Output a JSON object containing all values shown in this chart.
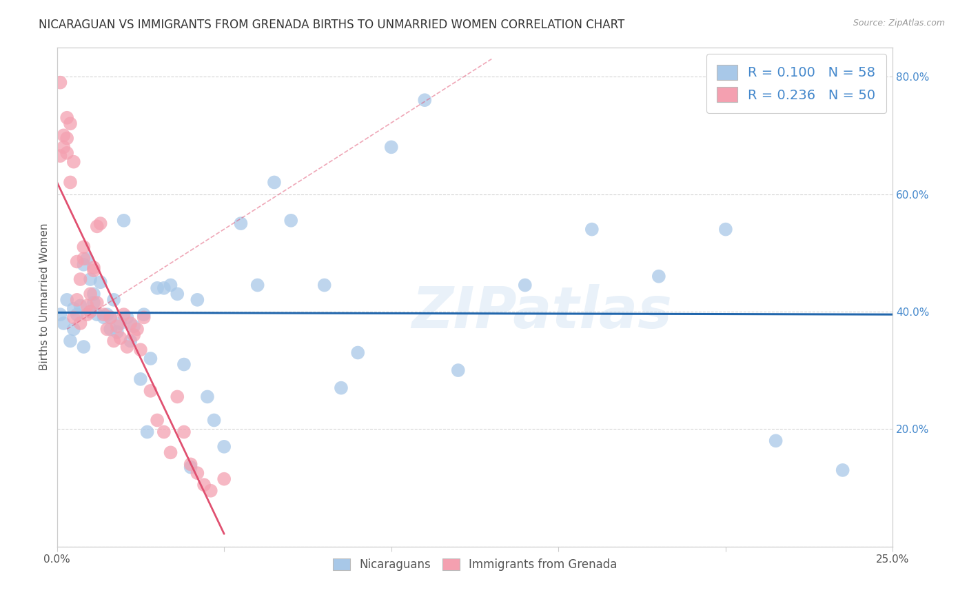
{
  "title": "NICARAGUAN VS IMMIGRANTS FROM GRENADA BIRTHS TO UNMARRIED WOMEN CORRELATION CHART",
  "source": "Source: ZipAtlas.com",
  "ylabel": "Births to Unmarried Women",
  "x_min": 0.0,
  "x_max": 0.25,
  "y_min": 0.0,
  "y_max": 0.85,
  "x_ticks": [
    0.0,
    0.05,
    0.1,
    0.15,
    0.2,
    0.25
  ],
  "y_ticks": [
    0.0,
    0.2,
    0.4,
    0.6,
    0.8
  ],
  "blue_color": "#a8c8e8",
  "pink_color": "#f4a0b0",
  "blue_line_color": "#2166ac",
  "pink_line_color": "#e05070",
  "blue_R": 0.1,
  "blue_N": 58,
  "pink_R": 0.236,
  "pink_N": 50,
  "legend_label_blue": "Nicaraguans",
  "legend_label_pink": "Immigrants from Grenada",
  "watermark": "ZIPatlas",
  "blue_points_x": [
    0.001,
    0.002,
    0.003,
    0.004,
    0.005,
    0.005,
    0.006,
    0.007,
    0.008,
    0.008,
    0.009,
    0.01,
    0.01,
    0.011,
    0.011,
    0.012,
    0.013,
    0.014,
    0.015,
    0.016,
    0.016,
    0.017,
    0.018,
    0.019,
    0.02,
    0.021,
    0.022,
    0.023,
    0.025,
    0.026,
    0.027,
    0.028,
    0.03,
    0.032,
    0.034,
    0.036,
    0.038,
    0.04,
    0.042,
    0.045,
    0.047,
    0.05,
    0.055,
    0.06,
    0.065,
    0.07,
    0.08,
    0.085,
    0.09,
    0.1,
    0.11,
    0.12,
    0.14,
    0.16,
    0.18,
    0.2,
    0.215,
    0.235
  ],
  "blue_points_y": [
    0.395,
    0.38,
    0.42,
    0.35,
    0.37,
    0.405,
    0.395,
    0.41,
    0.34,
    0.48,
    0.49,
    0.455,
    0.4,
    0.415,
    0.43,
    0.395,
    0.45,
    0.39,
    0.395,
    0.37,
    0.39,
    0.42,
    0.365,
    0.38,
    0.555,
    0.39,
    0.35,
    0.375,
    0.285,
    0.395,
    0.195,
    0.32,
    0.44,
    0.44,
    0.445,
    0.43,
    0.31,
    0.135,
    0.42,
    0.255,
    0.215,
    0.17,
    0.55,
    0.445,
    0.62,
    0.555,
    0.445,
    0.27,
    0.33,
    0.68,
    0.76,
    0.3,
    0.445,
    0.54,
    0.46,
    0.54,
    0.18,
    0.13
  ],
  "pink_points_x": [
    0.001,
    0.001,
    0.002,
    0.002,
    0.003,
    0.003,
    0.003,
    0.004,
    0.004,
    0.005,
    0.005,
    0.006,
    0.006,
    0.007,
    0.007,
    0.008,
    0.008,
    0.009,
    0.009,
    0.01,
    0.01,
    0.011,
    0.011,
    0.012,
    0.012,
    0.013,
    0.014,
    0.015,
    0.016,
    0.017,
    0.018,
    0.019,
    0.02,
    0.021,
    0.022,
    0.023,
    0.024,
    0.025,
    0.026,
    0.028,
    0.03,
    0.032,
    0.034,
    0.036,
    0.038,
    0.04,
    0.042,
    0.044,
    0.046,
    0.05
  ],
  "pink_points_y": [
    0.79,
    0.665,
    0.7,
    0.68,
    0.695,
    0.67,
    0.73,
    0.72,
    0.62,
    0.655,
    0.39,
    0.485,
    0.42,
    0.455,
    0.38,
    0.49,
    0.51,
    0.395,
    0.41,
    0.43,
    0.4,
    0.47,
    0.475,
    0.415,
    0.545,
    0.55,
    0.395,
    0.37,
    0.39,
    0.35,
    0.375,
    0.355,
    0.395,
    0.34,
    0.38,
    0.36,
    0.37,
    0.335,
    0.39,
    0.265,
    0.215,
    0.195,
    0.16,
    0.255,
    0.195,
    0.14,
    0.125,
    0.105,
    0.095,
    0.115
  ],
  "background_color": "#ffffff",
  "grid_color": "#d0d0d0",
  "title_fontsize": 12,
  "axis_fontsize": 11,
  "tick_fontsize": 11,
  "legend_fontsize": 14,
  "right_tick_color": "#4488cc"
}
